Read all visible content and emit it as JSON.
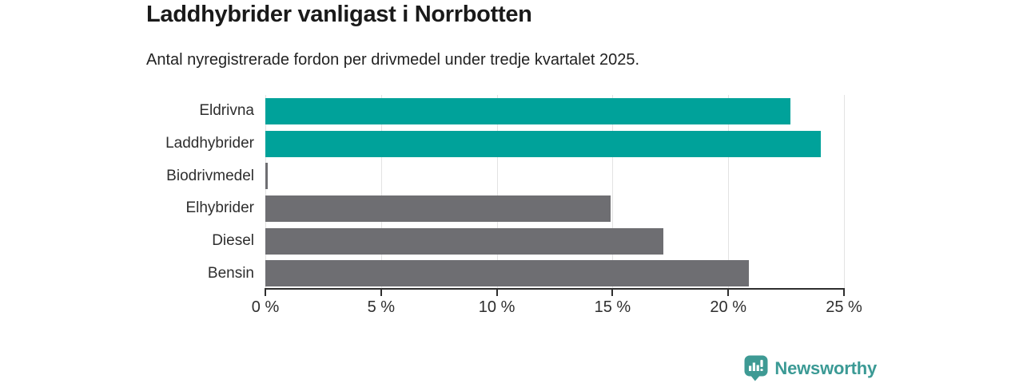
{
  "title": "Laddhybrider vanligast i Norrbotten",
  "subtitle": "Antal nyregistrerade fordon per drivmedel under tredje kvartalet 2025.",
  "chart_data": {
    "type": "bar",
    "orientation": "horizontal",
    "title": "Laddhybrider vanligast i Norrbotten",
    "subtitle": "Antal nyregistrerade fordon per drivmedel under tredje kvartalet 2025.",
    "categories": [
      "Eldrivna",
      "Laddhybrider",
      "Biodrivmedel",
      "Elhybrider",
      "Diesel",
      "Bensin"
    ],
    "values": [
      22.7,
      24.0,
      0.1,
      14.9,
      17.2,
      20.9
    ],
    "unit": "%",
    "xlim": [
      0,
      25
    ],
    "x_ticks": [
      0,
      5,
      10,
      15,
      20,
      25
    ],
    "x_tick_labels": [
      "0 %",
      "5 %",
      "10 %",
      "15 %",
      "20 %",
      "25 %"
    ],
    "bar_colors": [
      "#00a29a",
      "#00a29a",
      "#6e6e72",
      "#6e6e72",
      "#6e6e72",
      "#6e6e72"
    ],
    "highlight_color": "#00a29a",
    "default_color": "#6e6e72",
    "grid": true,
    "legend": false
  },
  "footer": {
    "brand": "Newsworthy",
    "logo_icon": "newsworthy-speech-bubble-bar-chart-icon",
    "brand_color": "#3b9a95"
  },
  "colors": {
    "background": "#ffffff",
    "title_text": "#1a1a1a",
    "body_text": "#2e2e2e",
    "gridline": "#e3e3e3",
    "axis": "#2e2e2e"
  }
}
